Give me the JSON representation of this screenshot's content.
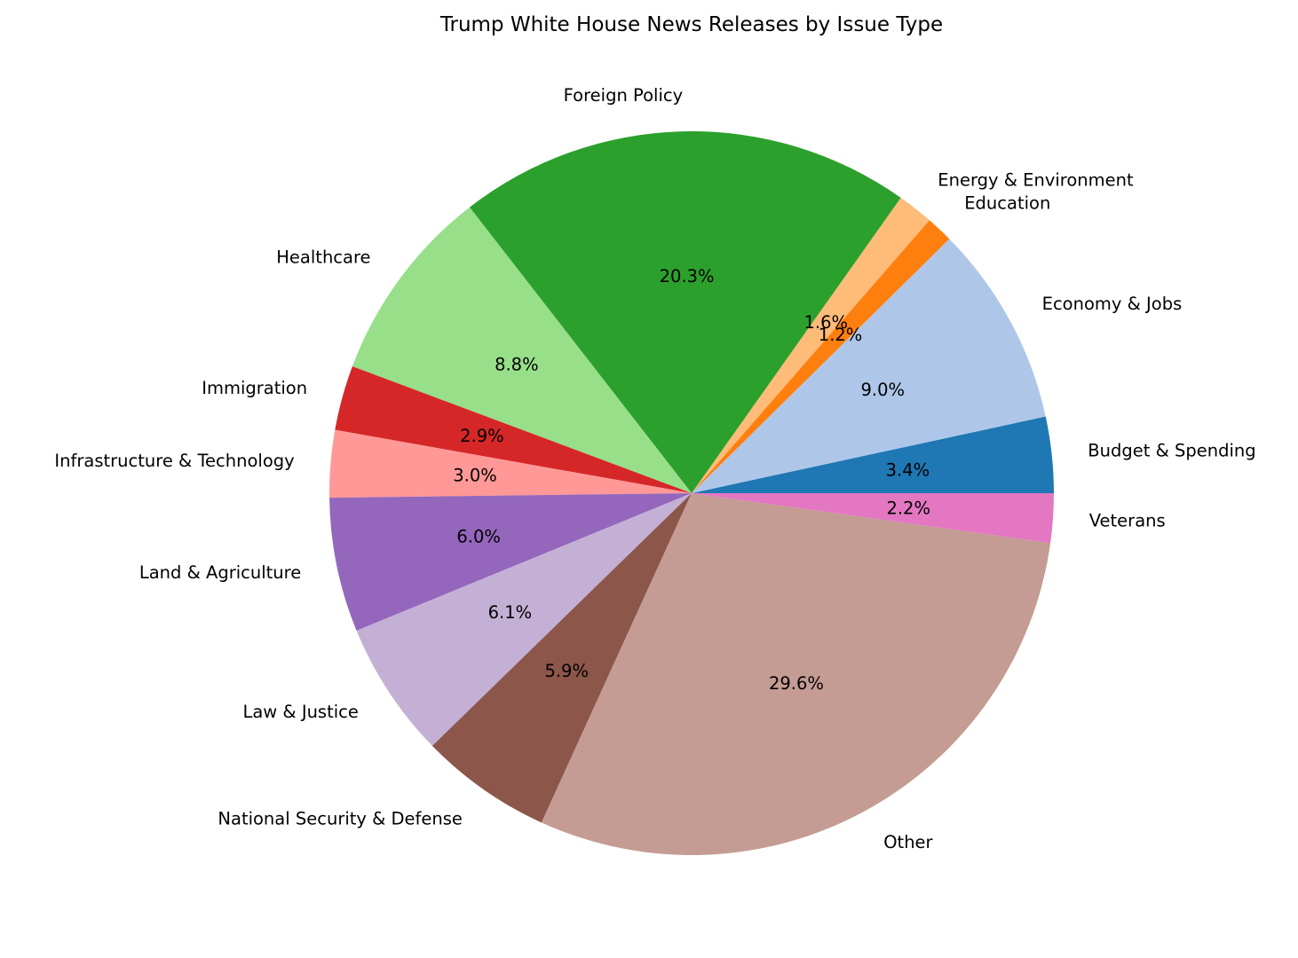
{
  "chart_data": {
    "type": "pie",
    "title": "Trump White House News Releases by Issue Type",
    "start_angle_deg": 0,
    "direction": "counterclockwise",
    "slices": [
      {
        "label": "Budget & Spending",
        "value": 3.4,
        "pct_label": "3.4%",
        "color": "#1f77b4"
      },
      {
        "label": "Economy & Jobs",
        "value": 9.0,
        "pct_label": "9.0%",
        "color": "#aec7e8"
      },
      {
        "label": "Education",
        "value": 1.2,
        "pct_label": "1.2%",
        "color": "#ff7f0e"
      },
      {
        "label": "Energy & Environment",
        "value": 1.6,
        "pct_label": "1.6%",
        "color": "#ffbb78"
      },
      {
        "label": "Foreign Policy",
        "value": 20.3,
        "pct_label": "20.3%",
        "color": "#2ca02c"
      },
      {
        "label": "Healthcare",
        "value": 8.8,
        "pct_label": "8.8%",
        "color": "#98df8a"
      },
      {
        "label": "Immigration",
        "value": 2.9,
        "pct_label": "2.9%",
        "color": "#d62728"
      },
      {
        "label": "Infrastructure & Technology",
        "value": 3.0,
        "pct_label": "3.0%",
        "color": "#ff9896"
      },
      {
        "label": "Land & Agriculture",
        "value": 6.0,
        "pct_label": "6.0%",
        "color": "#9467bd"
      },
      {
        "label": "Law & Justice",
        "value": 6.1,
        "pct_label": "6.1%",
        "color": "#c5b0d5"
      },
      {
        "label": "National Security & Defense",
        "value": 5.9,
        "pct_label": "5.9%",
        "color": "#8c564b"
      },
      {
        "label": "Other",
        "value": 29.6,
        "pct_label": "29.6%",
        "color": "#c49c94"
      },
      {
        "label": "Veterans",
        "value": 2.2,
        "pct_label": "2.2%",
        "color": "#e377c2"
      }
    ]
  }
}
